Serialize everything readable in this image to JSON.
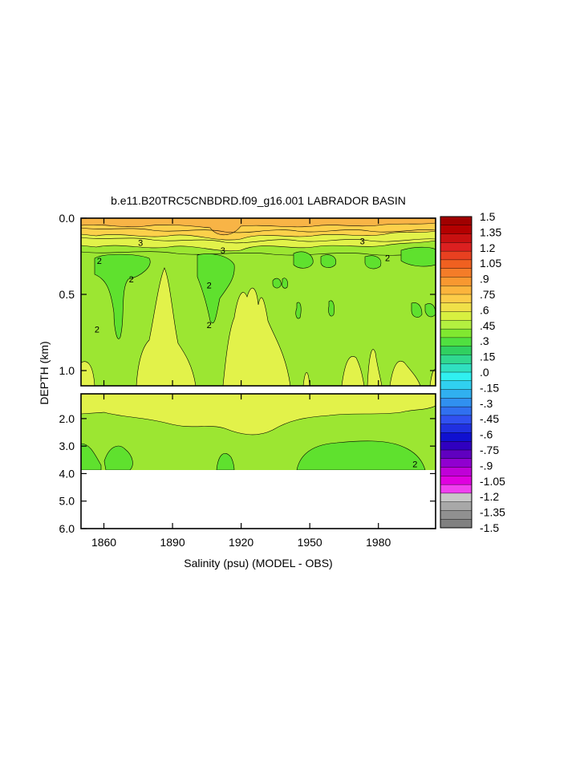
{
  "chart_data": {
    "type": "heatmap",
    "title": "b.e11.B20TRC5CNBDRD.f09_g16.001 LABRADOR BASIN",
    "xlabel": "Salinity (psu) (MODEL - OBS)",
    "ylabel": "DEPTH (km)",
    "x_range": [
      1850,
      2005
    ],
    "x_ticks": [
      "1860",
      "1890",
      "1920",
      "1950",
      "1980"
    ],
    "x_tick_values": [
      1860,
      1890,
      1920,
      1950,
      1980
    ],
    "upper_panel": {
      "y_range": [
        0.0,
        1.1
      ],
      "y_ticks": [
        "0.0",
        "0.5",
        "1.0"
      ],
      "y_tick_values": [
        0.0,
        0.5,
        1.0
      ]
    },
    "lower_panel": {
      "y_range": [
        1.1,
        6.0
      ],
      "y_ticks": [
        "2.0",
        "3.0",
        "4.0",
        "5.0",
        "6.0"
      ],
      "y_tick_values": [
        2.0,
        3.0,
        4.0,
        5.0,
        6.0
      ],
      "data_bottom_depth": 3.85
    },
    "contour_labels": [
      {
        "text": "3",
        "x": 1876,
        "y": 0.16
      },
      {
        "text": "3",
        "x": 1912,
        "y": 0.21
      },
      {
        "text": "3",
        "x": 1973,
        "y": 0.15
      },
      {
        "text": "2",
        "x": 1858,
        "y": 0.28
      },
      {
        "text": "2",
        "x": 1872,
        "y": 0.4
      },
      {
        "text": "2",
        "x": 1906,
        "y": 0.44
      },
      {
        "text": "2",
        "x": 1906,
        "y": 0.7
      },
      {
        "text": "2",
        "x": 1857,
        "y": 0.73
      },
      {
        "text": "2",
        "x": 1984,
        "y": 0.26
      },
      {
        "text": "2",
        "x": 1996,
        "y": 3.65
      }
    ],
    "colorbar": {
      "labels": [
        "1.5",
        "1.35",
        "1.2",
        "1.05",
        ".9",
        ".75",
        ".6",
        ".45",
        ".3",
        ".15",
        ".0",
        "-.15",
        "-.3",
        "-.45",
        "-.6",
        "-.75",
        "-.9",
        "-1.05",
        "-1.2",
        "-1.35",
        "-1.5"
      ],
      "values": [
        1.5,
        1.35,
        1.2,
        1.05,
        0.9,
        0.75,
        0.6,
        0.45,
        0.3,
        0.15,
        0.0,
        -0.15,
        -0.3,
        -0.45,
        -0.6,
        -0.75,
        -0.9,
        -1.05,
        -1.2,
        -1.35,
        -1.5
      ],
      "colors": [
        "#a00000",
        "#b40000",
        "#c81010",
        "#dc2020",
        "#e84020",
        "#f06020",
        "#f47c28",
        "#f89830",
        "#fcb43c",
        "#fccc48",
        "#f0e048",
        "#d8f040",
        "#b4f040",
        "#80e830",
        "#50e040",
        "#30d060",
        "#30d890",
        "#30e0c0",
        "#30f0f0",
        "#30d0f0",
        "#30b0f0",
        "#3090f0",
        "#3070f0",
        "#3050f0",
        "#2030e0",
        "#1010d0",
        "#3000c0",
        "#6000c0",
        "#9000d0",
        "#c000d8",
        "#e000e0",
        "#f040f0",
        "#c8c8c8",
        "#a8a8a8",
        "#909090",
        "#808080"
      ]
    },
    "fill_colors": {
      "background_anomaly": "#9ce632",
      "weak_positive": "#e2f24a",
      "near_zero_negative": "#5fe12e",
      "surface_strong": "#fcd04a",
      "surface_peak": "#f8b446",
      "no_data": "#ffffff"
    }
  }
}
